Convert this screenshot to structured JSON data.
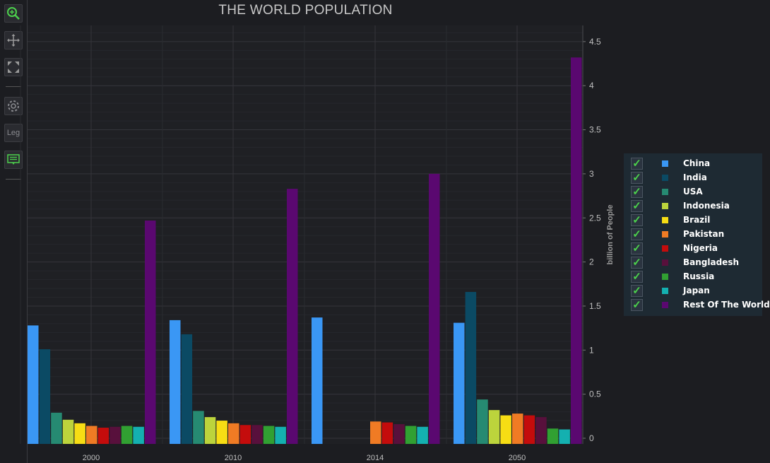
{
  "toolbar": {
    "buttons": [
      {
        "name": "zoom-icon",
        "color": "#4cd14c"
      },
      {
        "name": "pan-icon",
        "color": "#9a9a9a"
      },
      {
        "name": "zoom-extents-icon",
        "color": "#9a9a9a"
      },
      {
        "name": "settings-icon",
        "color": "#8a8b90"
      },
      {
        "name": "legend-toggle",
        "label": "Leg"
      },
      {
        "name": "cursor-tooltip-icon",
        "color": "#4cd14c"
      }
    ]
  },
  "chart_data": {
    "type": "bar",
    "title": "THE WORLD POPULATION",
    "ylabel": "billion of People",
    "xlabel": "",
    "ylim": [
      0,
      4.75
    ],
    "y_ticks": [
      "0",
      "0.5",
      "1",
      "1.5",
      "2",
      "2.5",
      "3",
      "3.5",
      "4",
      "4.5"
    ],
    "categories": [
      "2000",
      "2010",
      "2014",
      "2050"
    ],
    "grid": true,
    "legend_position": "right",
    "series": [
      {
        "name": "China",
        "color": "#3a97f5",
        "values": [
          1.28,
          1.34,
          1.37,
          1.31
        ]
      },
      {
        "name": "India",
        "color": "#0b4a64",
        "values": [
          1.01,
          1.18,
          null,
          1.66
        ]
      },
      {
        "name": "USA",
        "color": "#268a72",
        "values": [
          0.29,
          0.31,
          null,
          0.44
        ]
      },
      {
        "name": "Indonesia",
        "color": "#bcd43c",
        "values": [
          0.21,
          0.24,
          null,
          0.32
        ]
      },
      {
        "name": "Brazil",
        "color": "#f7dd14",
        "values": [
          0.17,
          0.2,
          null,
          0.26
        ]
      },
      {
        "name": "Pakistan",
        "color": "#f07b24",
        "values": [
          0.14,
          0.17,
          0.19,
          0.28
        ]
      },
      {
        "name": "Nigeria",
        "color": "#c40c0c",
        "values": [
          0.12,
          0.15,
          0.18,
          0.26
        ]
      },
      {
        "name": "Bangladesh",
        "color": "#58103c",
        "values": [
          0.13,
          0.15,
          0.16,
          0.24
        ]
      },
      {
        "name": "Russia",
        "color": "#31a032",
        "values": [
          0.14,
          0.14,
          0.14,
          0.11
        ]
      },
      {
        "name": "Japan",
        "color": "#14b0b0",
        "values": [
          0.13,
          0.13,
          0.13,
          0.1
        ]
      },
      {
        "name": "Rest Of The World",
        "color": "#5a0870",
        "values": [
          2.47,
          2.83,
          3.0,
          4.32
        ]
      }
    ]
  }
}
